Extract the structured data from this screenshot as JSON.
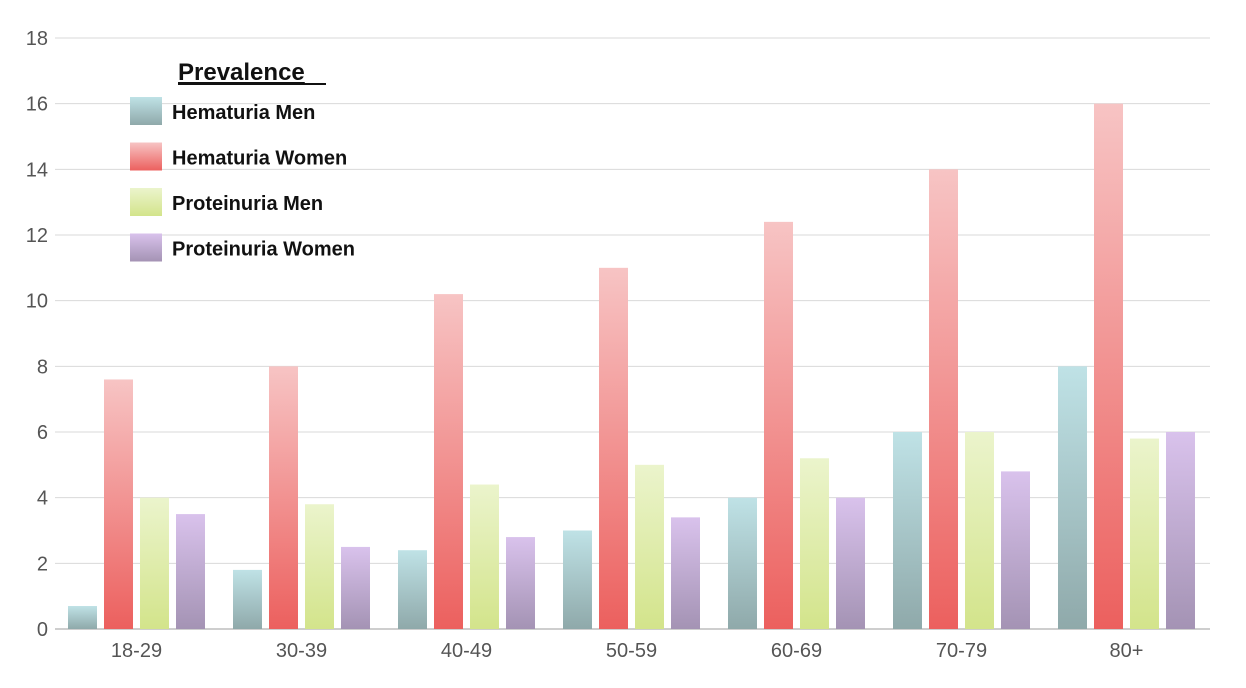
{
  "chart_data": {
    "type": "bar",
    "title": "",
    "xlabel": "",
    "ylabel": "",
    "ylim": [
      0,
      18
    ],
    "yticks": [
      0,
      2,
      4,
      6,
      8,
      10,
      12,
      14,
      16,
      18
    ],
    "grid": true,
    "legend_title": "Prevalence",
    "legend_position": "top-left",
    "categories": [
      "18-29",
      "30-39",
      "40-49",
      "50-59",
      "60-69",
      "70-79",
      "80+"
    ],
    "series": [
      {
        "name": "Hematuria Men",
        "values": [
          0.7,
          1.8,
          2.4,
          3.0,
          4.0,
          6.0,
          8.0
        ],
        "color_top": "#bfe2e6",
        "color_bottom": "#8fa9aa"
      },
      {
        "name": "Hematuria Women",
        "values": [
          7.6,
          8.0,
          10.2,
          11.0,
          12.4,
          14.0,
          16.0
        ],
        "color_top": "#f7c4c4",
        "color_bottom": "#ec605e"
      },
      {
        "name": "Proteinuria Men",
        "values": [
          4.0,
          3.8,
          4.4,
          5.0,
          5.2,
          6.0,
          5.8
        ],
        "color_top": "#ebf4cc",
        "color_bottom": "#d3e48b"
      },
      {
        "name": "Proteinuria Women",
        "values": [
          3.5,
          2.5,
          2.8,
          3.4,
          4.0,
          4.8,
          6.0
        ],
        "color_top": "#d9c2ec",
        "color_bottom": "#a493b4"
      }
    ]
  }
}
